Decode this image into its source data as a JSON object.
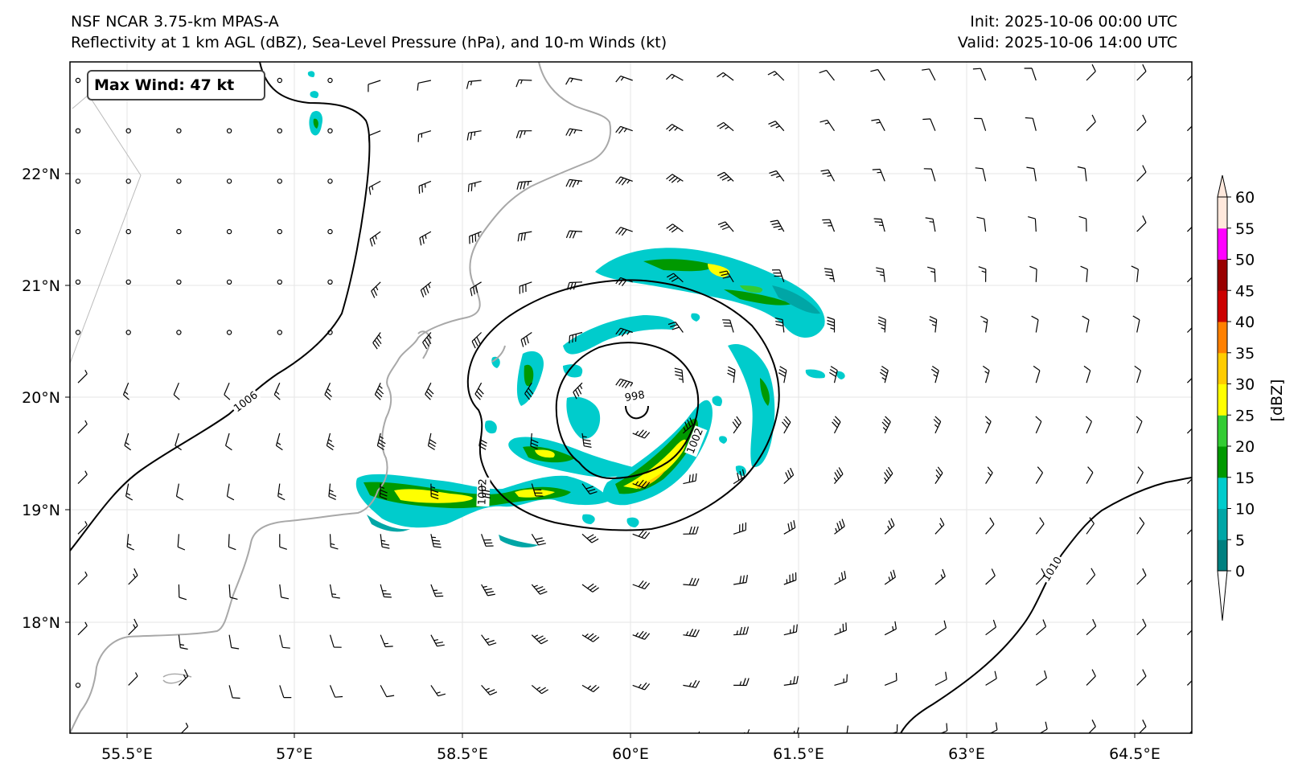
{
  "header": {
    "title_left_line1": "NSF NCAR 3.75-km MPAS-A",
    "title_left_line2": "Reflectivity at 1 km AGL (dBZ), Sea-Level Pressure (hPa), and 10-m Winds (kt)",
    "title_right_line1": "Init: 2025-10-06 00:00 UTC",
    "title_right_line2": "Valid: 2025-10-06 14:00 UTC"
  },
  "map": {
    "annotation": "Max Wind: 47 kt",
    "lon_labels": [
      "55.5°E",
      "57°E",
      "58.5°E",
      "60°E",
      "61.5°E",
      "63°E",
      "64.5°E"
    ],
    "lat_labels": [
      "22°N",
      "21°N",
      "20°N",
      "19°N",
      "18°N"
    ],
    "isobar_labels": [
      "1006",
      "1002",
      "1002",
      "998",
      "1010"
    ]
  },
  "colorbar": {
    "label": "[dBZ]",
    "ticks": [
      "0",
      "5",
      "10",
      "15",
      "20",
      "25",
      "30",
      "35",
      "40",
      "45",
      "50",
      "55",
      "60"
    ],
    "colors": [
      "#008080",
      "#00a6a6",
      "#00cccc",
      "#009900",
      "#33cc33",
      "#ffff00",
      "#ffcc00",
      "#ff8000",
      "#cc0000",
      "#990000",
      "#ff00ff",
      "#ffe8dc"
    ]
  },
  "colors": {
    "coastline": "#a8a8a8",
    "isobar": "#000000"
  }
}
